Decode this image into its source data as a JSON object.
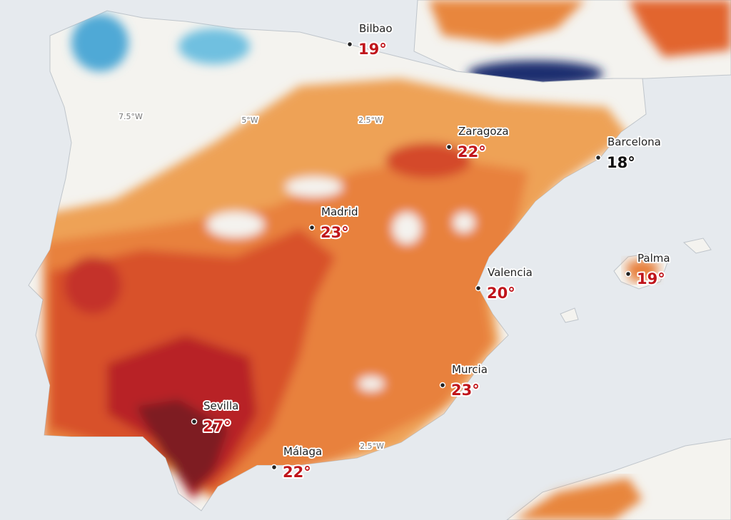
{
  "cities": [
    {
      "name": "Bilbao",
      "temp": "19°",
      "hot": true
    },
    {
      "name": "Zaragoza",
      "temp": "22°",
      "hot": true
    },
    {
      "name": "Barcelona",
      "temp": "18°",
      "hot": false
    },
    {
      "name": "Madrid",
      "temp": "23°",
      "hot": true
    },
    {
      "name": "Valencia",
      "temp": "20°",
      "hot": true
    },
    {
      "name": "Palma",
      "temp": "19°",
      "hot": true
    },
    {
      "name": "Murcia",
      "temp": "23°",
      "hot": true
    },
    {
      "name": "Sevilla",
      "temp": "27°",
      "hot": true
    },
    {
      "name": "Málaga",
      "temp": "22°",
      "hot": true
    }
  ],
  "graticule": [
    "7.5°W",
    "5°W",
    "2.5°W",
    "2.5°W"
  ]
}
